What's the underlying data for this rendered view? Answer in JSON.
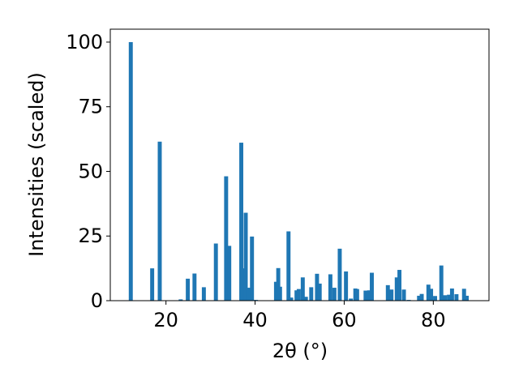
{
  "chart_data": {
    "type": "bar",
    "title": "",
    "xlabel": "2θ (°)",
    "ylabel": "Intensities (scaled)",
    "xlim": [
      7.5,
      92.5
    ],
    "ylim": [
      0,
      105
    ],
    "xticks": [
      20,
      40,
      60,
      80
    ],
    "yticks": [
      0,
      25,
      50,
      75,
      100
    ],
    "grid": false,
    "bar_color": "#1f77b4",
    "bar_width": 0.9,
    "x": [
      12.1,
      16.9,
      18.6,
      23.3,
      24.9,
      26.4,
      28.5,
      31.2,
      33.5,
      34.2,
      36.9,
      37.5,
      37.9,
      38.6,
      39.3,
      40.2,
      44.7,
      45.2,
      45.6,
      47.5,
      48.1,
      49.3,
      49.8,
      50.7,
      51.4,
      52.6,
      53.9,
      54.5,
      56.9,
      57.8,
      59.0,
      60.4,
      61.5,
      62.5,
      62.9,
      64.8,
      65.6,
      66.2,
      69.8,
      70.6,
      71.8,
      72.4,
      73.4,
      74.5,
      76.8,
      77.4,
      78.9,
      79.5,
      80.4,
      81.8,
      82.6,
      83.5,
      84.2,
      85.2,
      86.9,
      87.5
    ],
    "values": [
      100,
      12.5,
      61.5,
      0.5,
      8.5,
      10.5,
      5.2,
      22.1,
      48.1,
      21.2,
      61.1,
      12.5,
      34.0,
      5.0,
      24.8,
      0.3,
      7.3,
      12.6,
      5.4,
      26.8,
      1.2,
      4.0,
      4.5,
      9.0,
      1.5,
      5.2,
      10.4,
      6.6,
      10.2,
      5.0,
      20.1,
      11.3,
      0.8,
      4.7,
      4.5,
      3.9,
      4.0,
      10.8,
      6.0,
      4.3,
      9.0,
      11.9,
      4.3,
      0.3,
      1.9,
      2.6,
      6.2,
      4.6,
      1.8,
      13.6,
      2.1,
      2.3,
      4.7,
      2.5,
      4.6,
      1.9
    ]
  }
}
